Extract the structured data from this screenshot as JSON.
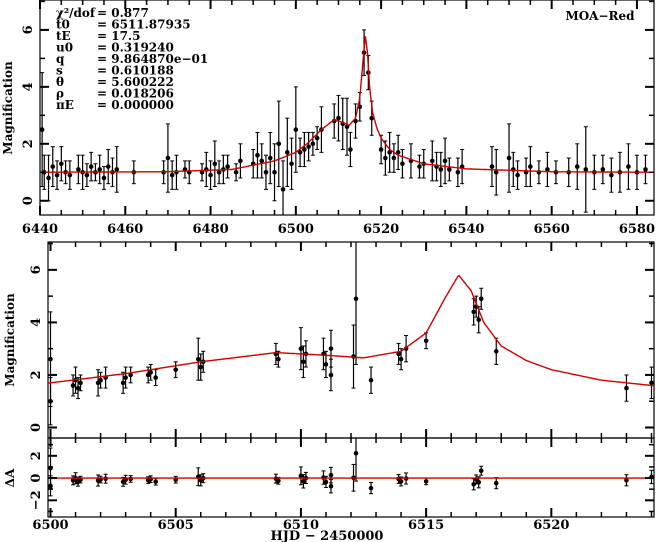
{
  "chart_data": [
    {
      "type": "scatter",
      "panel": "full-light-curve",
      "label": "MOA−Red",
      "ylabel": "Magnification",
      "xlim": [
        6440,
        6584
      ],
      "ylim": [
        -0.5,
        7.05
      ],
      "xticks": [
        "6440",
        "6460",
        "6480",
        "6500",
        "6520",
        "6540",
        "6560",
        "6580"
      ],
      "yticks": [
        "0",
        "2",
        "4",
        "6"
      ],
      "params": [
        {
          "name": "χ²/dof",
          "value": "= 0.877"
        },
        {
          "name": "t0",
          "value": "= 6511.87935"
        },
        {
          "name": "tE",
          "value": "= 17.5"
        },
        {
          "name": "u0",
          "value": "= 0.319240"
        },
        {
          "name": "q",
          "value": "= 9.864870e−01"
        },
        {
          "name": "s",
          "value": "= 0.610188"
        },
        {
          "name": "θ",
          "value": "= 5.600222"
        },
        {
          "name": "ρ",
          "value": "= 0.018206"
        },
        {
          "name": "πE",
          "value": "= 0.000000"
        }
      ],
      "points": [
        [
          6440.5,
          2.5,
          2.0
        ],
        [
          6441,
          1.0,
          0.6
        ],
        [
          6442,
          0.8,
          0.8
        ],
        [
          6443,
          1.2,
          0.7
        ],
        [
          6444,
          0.9,
          0.5
        ],
        [
          6445,
          1.3,
          0.6
        ],
        [
          6446,
          1.0,
          0.4
        ],
        [
          6447,
          0.9,
          0.5
        ],
        [
          6449,
          1.1,
          0.5
        ],
        [
          6450,
          1.0,
          0.6
        ],
        [
          6451,
          0.9,
          0.4
        ],
        [
          6452,
          1.2,
          0.5
        ],
        [
          6453,
          1.0,
          0.3
        ],
        [
          6454,
          1.1,
          0.5
        ],
        [
          6455,
          0.8,
          0.4
        ],
        [
          6456,
          1.2,
          0.6
        ],
        [
          6457,
          1.0,
          0.5
        ],
        [
          6458,
          1.1,
          0.8
        ],
        [
          6462,
          1.0,
          0.4
        ],
        [
          6469,
          1.0,
          0.4
        ],
        [
          6470,
          1.5,
          1.2
        ],
        [
          6471,
          0.9,
          0.5
        ],
        [
          6472,
          1.0,
          0.6
        ],
        [
          6474,
          1.1,
          0.3
        ],
        [
          6475,
          1.0,
          0.4
        ],
        [
          6478,
          1.0,
          0.3
        ],
        [
          6479,
          1.1,
          0.6
        ],
        [
          6480,
          0.9,
          0.5
        ],
        [
          6481,
          1.3,
          0.8
        ],
        [
          6482,
          1.0,
          0.4
        ],
        [
          6483,
          1.1,
          0.5
        ],
        [
          6484,
          1.2,
          0.4
        ],
        [
          6486,
          1.0,
          0.3
        ],
        [
          6487,
          1.4,
          0.6
        ],
        [
          6490,
          1.3,
          0.5
        ],
        [
          6491,
          1.6,
          0.8
        ],
        [
          6492,
          1.4,
          0.6
        ],
        [
          6493,
          1.0,
          0.6
        ],
        [
          6494,
          1.5,
          0.9
        ],
        [
          6495,
          1.0,
          1.0
        ],
        [
          6496,
          2.0,
          1.5
        ],
        [
          6497,
          0.4,
          1.0
        ],
        [
          6498,
          1.7,
          1.2
        ],
        [
          6499,
          1.3,
          0.9
        ],
        [
          6500,
          2.5,
          1.5
        ],
        [
          6501,
          1.7,
          0.5
        ],
        [
          6502,
          1.8,
          0.6
        ],
        [
          6503,
          1.9,
          0.5
        ],
        [
          6504,
          2.0,
          0.4
        ],
        [
          6505,
          2.2,
          0.4
        ],
        [
          6506,
          2.5,
          0.8
        ],
        [
          6509,
          2.8,
          0.6
        ],
        [
          6510,
          2.9,
          0.8
        ],
        [
          6511,
          2.7,
          0.9
        ],
        [
          6512,
          2.6,
          1.0
        ],
        [
          6512.8,
          1.8,
          0.6
        ],
        [
          6514,
          2.8,
          0.6
        ],
        [
          6515,
          3.3,
          0.5
        ],
        [
          6516,
          5.2,
          0.8
        ],
        [
          6517,
          4.5,
          0.6
        ],
        [
          6517.8,
          2.9,
          0.6
        ],
        [
          6520,
          1.8,
          0.5
        ],
        [
          6521,
          1.5,
          0.6
        ],
        [
          6522,
          1.7,
          0.7
        ],
        [
          6523,
          1.5,
          0.5
        ],
        [
          6524,
          1.7,
          0.6
        ],
        [
          6525,
          1.3,
          0.5
        ],
        [
          6527,
          1.4,
          0.6
        ],
        [
          6529,
          1.2,
          0.4
        ],
        [
          6530,
          1.3,
          0.5
        ],
        [
          6532,
          1.4,
          0.7
        ],
        [
          6533,
          1.2,
          0.5
        ],
        [
          6534,
          1.1,
          0.6
        ],
        [
          6535,
          1.4,
          0.8
        ],
        [
          6536,
          1.1,
          0.4
        ],
        [
          6538,
          1.0,
          0.5
        ],
        [
          6539,
          1.2,
          0.6
        ],
        [
          6546,
          1.2,
          0.7
        ],
        [
          6547,
          1.0,
          0.8
        ],
        [
          6550,
          1.5,
          1.2
        ],
        [
          6551,
          1.1,
          0.6
        ],
        [
          6552,
          0.9,
          0.5
        ],
        [
          6554,
          1.0,
          0.5
        ],
        [
          6555,
          1.2,
          0.7
        ],
        [
          6557,
          1.0,
          0.4
        ],
        [
          6559,
          1.1,
          0.6
        ],
        [
          6561,
          1.0,
          0.4
        ],
        [
          6564,
          1.0,
          0.5
        ],
        [
          6566,
          1.2,
          0.8
        ],
        [
          6568,
          1.1,
          1.5
        ],
        [
          6570,
          1.0,
          0.6
        ],
        [
          6572,
          1.1,
          0.5
        ],
        [
          6574,
          0.9,
          0.6
        ],
        [
          6576,
          1.0,
          0.7
        ],
        [
          6578,
          1.2,
          0.8
        ],
        [
          6580,
          1.0,
          0.6
        ],
        [
          6582,
          1.1,
          0.5
        ]
      ]
    },
    {
      "type": "scatter",
      "panel": "zoom-light-curve",
      "ylabel": "Magnification",
      "xlim": [
        6499.9,
        6524.1
      ],
      "ylim": [
        -0.4,
        7.06
      ],
      "yticks": [
        "0",
        "2",
        "4",
        "6"
      ],
      "points": [
        [
          6500,
          2.6,
          1.8
        ],
        [
          6500,
          1.0,
          0.9
        ],
        [
          6500.9,
          1.6,
          0.4
        ],
        [
          6501,
          1.8,
          0.5
        ],
        [
          6501.1,
          1.5,
          0.4
        ],
        [
          6501.2,
          1.7,
          0.3
        ],
        [
          6501.9,
          1.7,
          0.5
        ],
        [
          6502,
          1.8,
          0.3
        ],
        [
          6502.2,
          1.9,
          0.4
        ],
        [
          6502.9,
          1.7,
          0.4
        ],
        [
          6503,
          1.9,
          0.4
        ],
        [
          6503.2,
          2.0,
          0.3
        ],
        [
          6503.9,
          2.0,
          0.3
        ],
        [
          6504,
          2.1,
          0.3
        ],
        [
          6504.2,
          1.9,
          0.3
        ],
        [
          6505,
          2.2,
          0.3
        ],
        [
          6505.9,
          2.6,
          0.8
        ],
        [
          6506,
          2.3,
          0.5
        ],
        [
          6506.1,
          2.5,
          0.4
        ],
        [
          6509,
          2.8,
          0.4
        ],
        [
          6509.1,
          2.6,
          0.3
        ],
        [
          6510,
          3.0,
          0.8
        ],
        [
          6510.1,
          2.5,
          0.6
        ],
        [
          6510.2,
          2.8,
          0.5
        ],
        [
          6510.9,
          2.8,
          0.6
        ],
        [
          6511,
          2.4,
          0.5
        ],
        [
          6511.2,
          2.0,
          0.6
        ],
        [
          6511.2,
          3.0,
          0.7
        ],
        [
          6512.1,
          2.7,
          1.2
        ],
        [
          6512.2,
          4.9,
          2.5
        ],
        [
          6512.8,
          1.8,
          0.5
        ],
        [
          6513.9,
          2.8,
          0.4
        ],
        [
          6514,
          2.6,
          0.4
        ],
        [
          6514.2,
          3.0,
          0.5
        ],
        [
          6515,
          3.3,
          0.3
        ],
        [
          6516.9,
          4.4,
          0.5
        ],
        [
          6517,
          4.6,
          0.4
        ],
        [
          6517.1,
          4.1,
          0.5
        ],
        [
          6517.2,
          4.9,
          0.4
        ],
        [
          6517.8,
          2.9,
          0.5
        ],
        [
          6523,
          1.5,
          0.5
        ],
        [
          6524,
          1.7,
          0.6
        ]
      ]
    },
    {
      "type": "scatter",
      "panel": "residuals",
      "ylabel": "ΔA",
      "ylim": [
        -3.5,
        3.6
      ],
      "yticks": [
        "−2",
        "0",
        "2"
      ],
      "xlabel": "HJD − 2450000",
      "xticks": [
        "6500",
        "6505",
        "6510",
        "6515",
        "6520"
      ]
    },
    {
      "type": "line",
      "name": "model",
      "color": "#cc0000",
      "x": [
        6440,
        6470,
        6485,
        6495,
        6500,
        6503,
        6506,
        6509,
        6511,
        6512.5,
        6514,
        6515,
        6515.8,
        6516.3,
        6516.8,
        6517.3,
        6518,
        6519,
        6520,
        6522,
        6524,
        6530,
        6540,
        6560,
        6584
      ],
      "y": [
        1.0,
        1.02,
        1.1,
        1.4,
        1.7,
        2.05,
        2.5,
        2.85,
        2.75,
        2.65,
        2.9,
        3.6,
        5.0,
        5.8,
        5.2,
        4.0,
        3.1,
        2.55,
        2.2,
        1.8,
        1.6,
        1.3,
        1.12,
        1.02,
        1.0
      ]
    }
  ]
}
